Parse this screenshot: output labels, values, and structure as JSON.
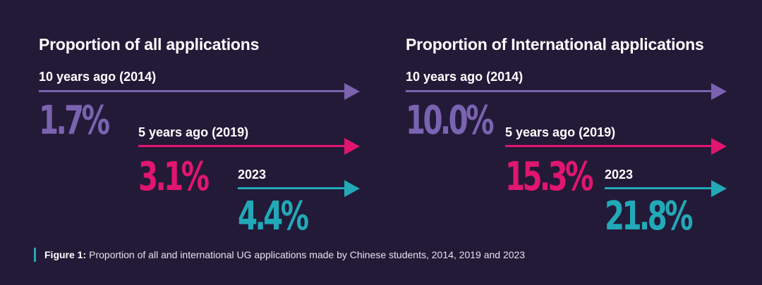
{
  "chart_data": [
    {
      "type": "bar",
      "title": "Proportion of all applications",
      "categories": [
        "10 years ago (2014)",
        "5 years ago (2019)",
        "2023"
      ],
      "values": [
        1.7,
        3.1,
        4.4
      ],
      "value_labels": [
        "1.7%",
        "3.1%",
        "4.4%"
      ],
      "colors": [
        "#7a63b0",
        "#e0166f",
        "#22a9b8"
      ]
    },
    {
      "type": "bar",
      "title": "Proportion of International applications",
      "categories": [
        "10 years ago (2014)",
        "5 years ago (2019)",
        "2023"
      ],
      "values": [
        10.0,
        15.3,
        21.8
      ],
      "value_labels": [
        "10.0%",
        "15.3%",
        "21.8%"
      ],
      "colors": [
        "#7a63b0",
        "#e0166f",
        "#22a9b8"
      ]
    }
  ],
  "caption": {
    "label": "Figure 1:",
    "text": "Proportion of all and international UG applications made by Chinese students, 2014, 2019 and 2023",
    "accent_color": "#22a9b8"
  }
}
